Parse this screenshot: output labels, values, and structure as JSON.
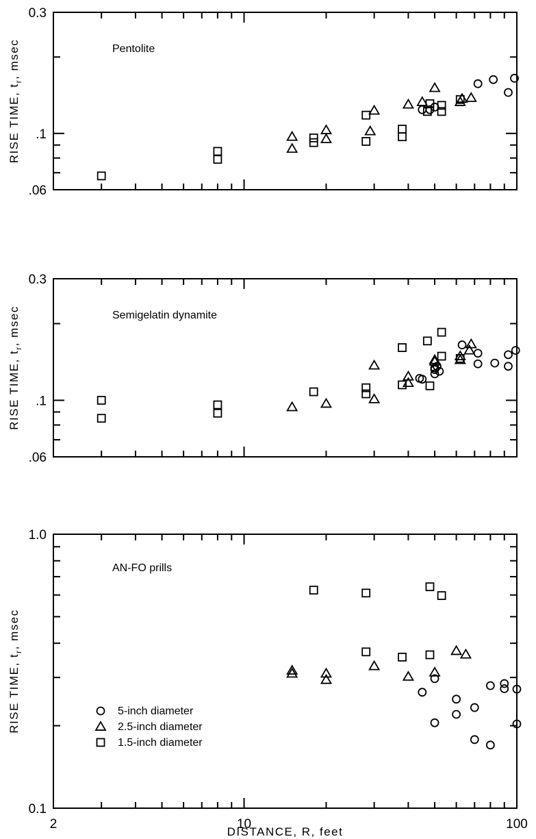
{
  "chart_data": [
    {
      "type": "scatter",
      "title": "Pentolite",
      "ylabel": {
        "main": "RISE TIME, t",
        "sub": "r",
        "tail": ", msec"
      },
      "xscale": "log",
      "yscale": "log",
      "xlim": [
        2,
        100
      ],
      "ylim": [
        0.06,
        0.3
      ],
      "ytick_labels": [
        {
          "value": 0.3,
          "label": "0.3"
        },
        {
          "value": 0.1,
          "label": ".1"
        },
        {
          "value": 0.06,
          "label": ".06"
        }
      ],
      "series": [
        {
          "marker": "circle",
          "points": [
            [
              45,
              0.124
            ],
            [
              48,
              0.124
            ],
            [
              50,
              0.127
            ],
            [
              72,
              0.157
            ],
            [
              82,
              0.163
            ],
            [
              93,
              0.145
            ],
            [
              98,
              0.165
            ]
          ]
        },
        {
          "marker": "triangle",
          "points": [
            [
              15,
              0.097
            ],
            [
              15,
              0.087
            ],
            [
              20,
              0.103
            ],
            [
              20,
              0.095
            ],
            [
              29,
              0.102
            ],
            [
              30,
              0.123
            ],
            [
              40,
              0.13
            ],
            [
              45,
              0.133
            ],
            [
              50,
              0.151
            ],
            [
              62,
              0.133
            ],
            [
              63,
              0.137
            ],
            [
              68,
              0.138
            ]
          ]
        },
        {
          "marker": "square",
          "points": [
            [
              3,
              0.068
            ],
            [
              8,
              0.085
            ],
            [
              8,
              0.079
            ],
            [
              18,
              0.096
            ],
            [
              18,
              0.092
            ],
            [
              28,
              0.118
            ],
            [
              28,
              0.093
            ],
            [
              38,
              0.104
            ],
            [
              38,
              0.097
            ],
            [
              47,
              0.122
            ],
            [
              48,
              0.131
            ],
            [
              53,
              0.122
            ],
            [
              53,
              0.129
            ],
            [
              62,
              0.136
            ]
          ]
        }
      ]
    },
    {
      "type": "scatter",
      "title": "Semigelatin dynamite",
      "ylabel": {
        "main": "RISE TIME, t",
        "sub": "r",
        "tail": ", msec"
      },
      "xscale": "log",
      "yscale": "log",
      "xlim": [
        2,
        100
      ],
      "ylim": [
        0.06,
        0.3
      ],
      "ytick_labels": [
        {
          "value": 0.3,
          "label": "0.3"
        },
        {
          "value": 0.1,
          "label": ".1"
        },
        {
          "value": 0.06,
          "label": ".06"
        }
      ],
      "series": [
        {
          "marker": "circle",
          "points": [
            [
              44,
              0.122
            ],
            [
              45,
              0.121
            ],
            [
              50,
              0.127
            ],
            [
              50,
              0.132
            ],
            [
              50,
              0.134
            ],
            [
              51,
              0.136
            ],
            [
              52,
              0.13
            ],
            [
              63,
              0.165
            ],
            [
              72,
              0.153
            ],
            [
              72,
              0.139
            ],
            [
              83,
              0.14
            ],
            [
              93,
              0.151
            ],
            [
              93,
              0.136
            ],
            [
              99,
              0.157
            ]
          ]
        },
        {
          "marker": "triangle",
          "points": [
            [
              15,
              0.094
            ],
            [
              20,
              0.097
            ],
            [
              30,
              0.101
            ],
            [
              30,
              0.137
            ],
            [
              40,
              0.117
            ],
            [
              40,
              0.124
            ],
            [
              50,
              0.144
            ],
            [
              50,
              0.142
            ],
            [
              62,
              0.144
            ],
            [
              62,
              0.149
            ],
            [
              67,
              0.157
            ],
            [
              68,
              0.166
            ]
          ]
        },
        {
          "marker": "square",
          "points": [
            [
              3,
              0.1
            ],
            [
              3,
              0.085
            ],
            [
              8,
              0.096
            ],
            [
              8,
              0.089
            ],
            [
              18,
              0.108
            ],
            [
              28,
              0.112
            ],
            [
              28,
              0.106
            ],
            [
              38,
              0.161
            ],
            [
              38,
              0.115
            ],
            [
              47,
              0.171
            ],
            [
              48,
              0.114
            ],
            [
              53,
              0.149
            ],
            [
              53,
              0.185
            ],
            [
              62,
              0.146
            ]
          ]
        }
      ]
    },
    {
      "type": "scatter",
      "title": "AN-FO prills",
      "xlabel": "DISTANCE, R, feet",
      "ylabel": {
        "main": "RISE TIME, t",
        "sub": "r",
        "tail": ", msec"
      },
      "xscale": "log",
      "yscale": "log",
      "xlim": [
        2,
        100
      ],
      "ylim": [
        0.1,
        1.0
      ],
      "xtick_labels": [
        {
          "value": 2,
          "label": "2"
        },
        {
          "value": 10,
          "label": "10"
        },
        {
          "value": 100,
          "label": "100"
        }
      ],
      "ytick_labels": [
        {
          "value": 1.0,
          "label": "1.0"
        },
        {
          "value": 0.1,
          "label": "0.1"
        }
      ],
      "legend": {
        "position": "bottom-left",
        "entries": [
          {
            "marker": "circle",
            "label": "5-inch diameter"
          },
          {
            "marker": "triangle",
            "label": "2.5-inch diameter"
          },
          {
            "marker": "square",
            "label": "1.5-inch diameter"
          }
        ]
      },
      "series": [
        {
          "marker": "circle",
          "points": [
            [
              45,
              0.265
            ],
            [
              50,
              0.297
            ],
            [
              50,
              0.205
            ],
            [
              60,
              0.25
            ],
            [
              60,
              0.22
            ],
            [
              70,
              0.233
            ],
            [
              70,
              0.178
            ],
            [
              80,
              0.28
            ],
            [
              80,
              0.17
            ],
            [
              90,
              0.285
            ],
            [
              90,
              0.273
            ],
            [
              100,
              0.272
            ],
            [
              100,
              0.203
            ]
          ]
        },
        {
          "marker": "triangle",
          "points": [
            [
              15,
              0.318
            ],
            [
              15,
              0.31
            ],
            [
              20,
              0.31
            ],
            [
              20,
              0.294
            ],
            [
              30,
              0.33
            ],
            [
              40,
              0.302
            ],
            [
              50,
              0.313
            ],
            [
              60,
              0.375
            ],
            [
              65,
              0.364
            ]
          ]
        },
        {
          "marker": "square",
          "points": [
            [
              18,
              0.625
            ],
            [
              28,
              0.61
            ],
            [
              28,
              0.372
            ],
            [
              38,
              0.356
            ],
            [
              48,
              0.643
            ],
            [
              48,
              0.363
            ],
            [
              53,
              0.597
            ]
          ]
        }
      ]
    }
  ]
}
